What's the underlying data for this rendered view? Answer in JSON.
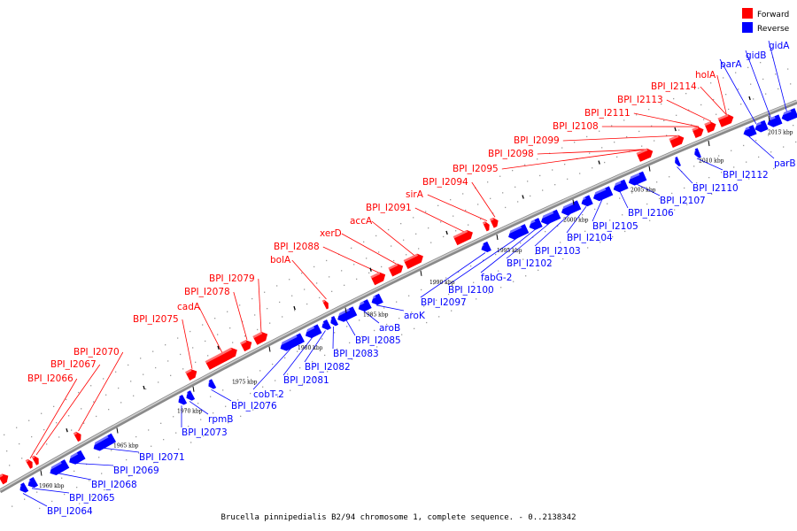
{
  "title": "Brucella pinnipedialis B2/94 chromosome 1, complete sequence. - 0..2138342",
  "legend": {
    "forward_label": "Forward",
    "reverse_label": "Reverse",
    "forward_color": "#ff0000",
    "reverse_color": "#0000ff"
  },
  "ticks": [
    "1960 kbp",
    "1965 kbp",
    "1970 kbp",
    "1975 kbp",
    "1980 kbp",
    "1985 kbp",
    "1990 kbp",
    "1995 kbp",
    "2000 kbp",
    "2005 kbp",
    "2010 kbp",
    "2015 kbp"
  ],
  "forward_genes": [
    "BPI_I2066",
    "BPI_I2067",
    "BPI_I2070",
    "BPI_I2075",
    "cadA",
    "BPI_I2078",
    "BPI_I2079",
    "bolA",
    "BPI_I2088",
    "xerD",
    "accA",
    "BPI_I2091",
    "sirA",
    "BPI_I2094",
    "BPI_I2095",
    "BPI_I2098",
    "BPI_I2099",
    "BPI_I2108",
    "BPI_I2111",
    "BPI_I2113",
    "BPI_I2114",
    "holA"
  ],
  "reverse_genes": [
    "BPI_I2064",
    "BPI_I2065",
    "BPI_I2068",
    "BPI_I2069",
    "BPI_I2071",
    "BPI_I2073",
    "rpmB",
    "BPI_I2076",
    "cobT-2",
    "BPI_I2081",
    "BPI_I2082",
    "BPI_I2083",
    "BPI_I2085",
    "aroB",
    "aroK",
    "BPI_I2097",
    "BPI_I2100",
    "fabG-2",
    "BPI_I2102",
    "BPI_I2103",
    "BPI_I2104",
    "BPI_I2105",
    "BPI_I2106",
    "BPI_I2107",
    "BPI_I2110",
    "BPI_I2112",
    "parB",
    "parA",
    "gidB",
    "gidA"
  ]
}
